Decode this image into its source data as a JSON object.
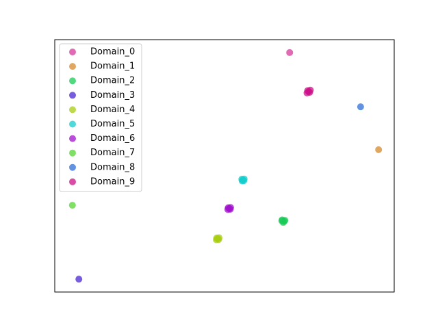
{
  "chart_data": {
    "type": "scatter",
    "xlim": [
      0,
      100
    ],
    "ylim": [
      0,
      100
    ],
    "legend": "upper left",
    "alpha": 0.75,
    "series": [
      {
        "name": "Domain_0",
        "color": "#d6389a",
        "x": [
          69.2
        ],
        "values": [
          94.9
        ]
      },
      {
        "name": "Domain_1",
        "color": "#d68a2c",
        "x": [
          95.4
        ],
        "values": [
          56.4
        ]
      },
      {
        "name": "Domain_2",
        "color": "#19c957",
        "x": [
          67.0,
          67.6,
          67.3,
          66.9,
          67.8
        ],
        "values": [
          28.6,
          28.0,
          27.6,
          28.2,
          28.4
        ]
      },
      {
        "name": "Domain_3",
        "color": "#4a25d6",
        "x": [
          7.1
        ],
        "values": [
          5.1
        ]
      },
      {
        "name": "Domain_4",
        "color": "#a8cc12",
        "x": [
          47.7,
          48.3,
          48.0,
          47.6,
          48.4
        ],
        "values": [
          21.4,
          20.8,
          21.1,
          20.7,
          21.5
        ]
      },
      {
        "name": "Domain_5",
        "color": "#16cccc",
        "x": [
          55.1,
          55.7,
          55.4,
          55.2,
          55.8
        ],
        "values": [
          44.7,
          44.1,
          44.4,
          44.0,
          44.8
        ]
      },
      {
        "name": "Domain_6",
        "color": "#a012cc",
        "x": [
          51.1,
          51.7,
          51.4,
          51.0,
          51.8
        ],
        "values": [
          33.4,
          32.8,
          33.1,
          32.7,
          33.5
        ]
      },
      {
        "name": "Domain_7",
        "color": "#55d631",
        "x": [
          5.2
        ],
        "values": [
          34.4
        ]
      },
      {
        "name": "Domain_8",
        "color": "#2f6fd6",
        "x": [
          90.1
        ],
        "values": [
          73.4
        ]
      },
      {
        "name": "Domain_9",
        "color": "#cc128a",
        "x": [
          74.5,
          75.1,
          74.8,
          74.3,
          75.3
        ],
        "values": [
          79.8,
          79.1,
          79.4,
          78.9,
          80.0
        ]
      }
    ]
  }
}
